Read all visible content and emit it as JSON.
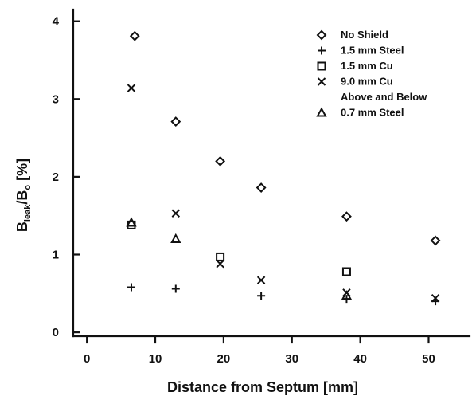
{
  "chart_data": {
    "type": "scatter",
    "xlabel": "Distance from Septum [mm]",
    "ylabel": {
      "b": "B",
      "sub1": "leak",
      "slash": "/B",
      "sub2": "o",
      "unit": " [%]"
    },
    "xlim": [
      -2,
      56
    ],
    "ylim": [
      -0.05,
      4.15
    ],
    "xticks": [
      0,
      10,
      20,
      30,
      40,
      50
    ],
    "yticks": [
      0,
      1,
      2,
      3,
      4
    ],
    "grid": false,
    "legend_position": "top-right",
    "series": [
      {
        "name": "No Shield",
        "marker": "diamond",
        "x": [
          7,
          13,
          19.5,
          25.5,
          38,
          51
        ],
        "y": [
          3.81,
          2.71,
          2.2,
          1.86,
          1.49,
          1.18
        ]
      },
      {
        "name": "1.5 mm Steel",
        "marker": "plus",
        "x": [
          6.5,
          13,
          25.5,
          38,
          51
        ],
        "y": [
          0.58,
          0.56,
          0.47,
          0.43,
          0.4
        ]
      },
      {
        "name": "1.5 mm Cu",
        "marker": "square",
        "x": [
          6.5,
          19.5,
          38
        ],
        "y": [
          1.38,
          0.97,
          0.78
        ]
      },
      {
        "name": "9.0 mm Cu",
        "name2": "Above and Below",
        "marker": "x",
        "x": [
          6.5,
          13,
          19.5,
          25.5,
          38,
          51
        ],
        "y": [
          3.14,
          1.53,
          0.88,
          0.67,
          0.51,
          0.44
        ]
      },
      {
        "name": "0.7 mm Steel",
        "marker": "triangle",
        "x": [
          6.5,
          13,
          38
        ],
        "y": [
          1.41,
          1.2,
          0.47
        ]
      }
    ]
  }
}
